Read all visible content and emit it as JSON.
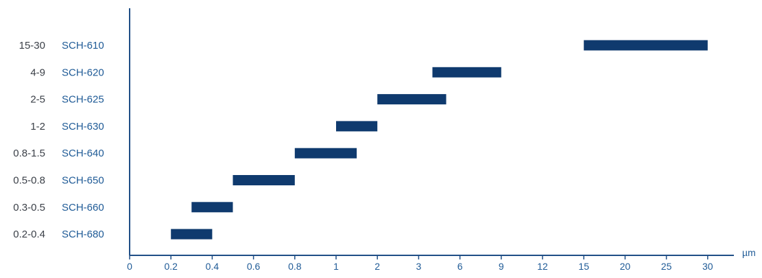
{
  "chart_data": {
    "type": "bar",
    "orientation": "horizontal-range",
    "x_unit": "µm",
    "x_ticks": [
      "0",
      "0.2",
      "0.4",
      "0.6",
      "0.8",
      "1",
      "2",
      "3",
      "6",
      "9",
      "12",
      "15",
      "20",
      "25",
      "30"
    ],
    "bar_color": "#0f3a6e",
    "axis_color": "#1f4e86",
    "series": [
      {
        "code": "SCH-610",
        "range_label": "15-30",
        "min": 15,
        "max": 30
      },
      {
        "code": "SCH-620",
        "range_label": "4-9",
        "min": 4,
        "max": 9
      },
      {
        "code": "SCH-625",
        "range_label": "2-5",
        "min": 2,
        "max": 5
      },
      {
        "code": "SCH-630",
        "range_label": "1-2",
        "min": 1,
        "max": 2
      },
      {
        "code": "SCH-640",
        "range_label": "0.8-1.5",
        "min": 0.8,
        "max": 1.5
      },
      {
        "code": "SCH-650",
        "range_label": "0.5-0.8",
        "min": 0.5,
        "max": 0.8
      },
      {
        "code": "SCH-660",
        "range_label": "0.3-0.5",
        "min": 0.3,
        "max": 0.5
      },
      {
        "code": "SCH-680",
        "range_label": "0.2-0.4",
        "min": 0.2,
        "max": 0.4
      }
    ]
  }
}
